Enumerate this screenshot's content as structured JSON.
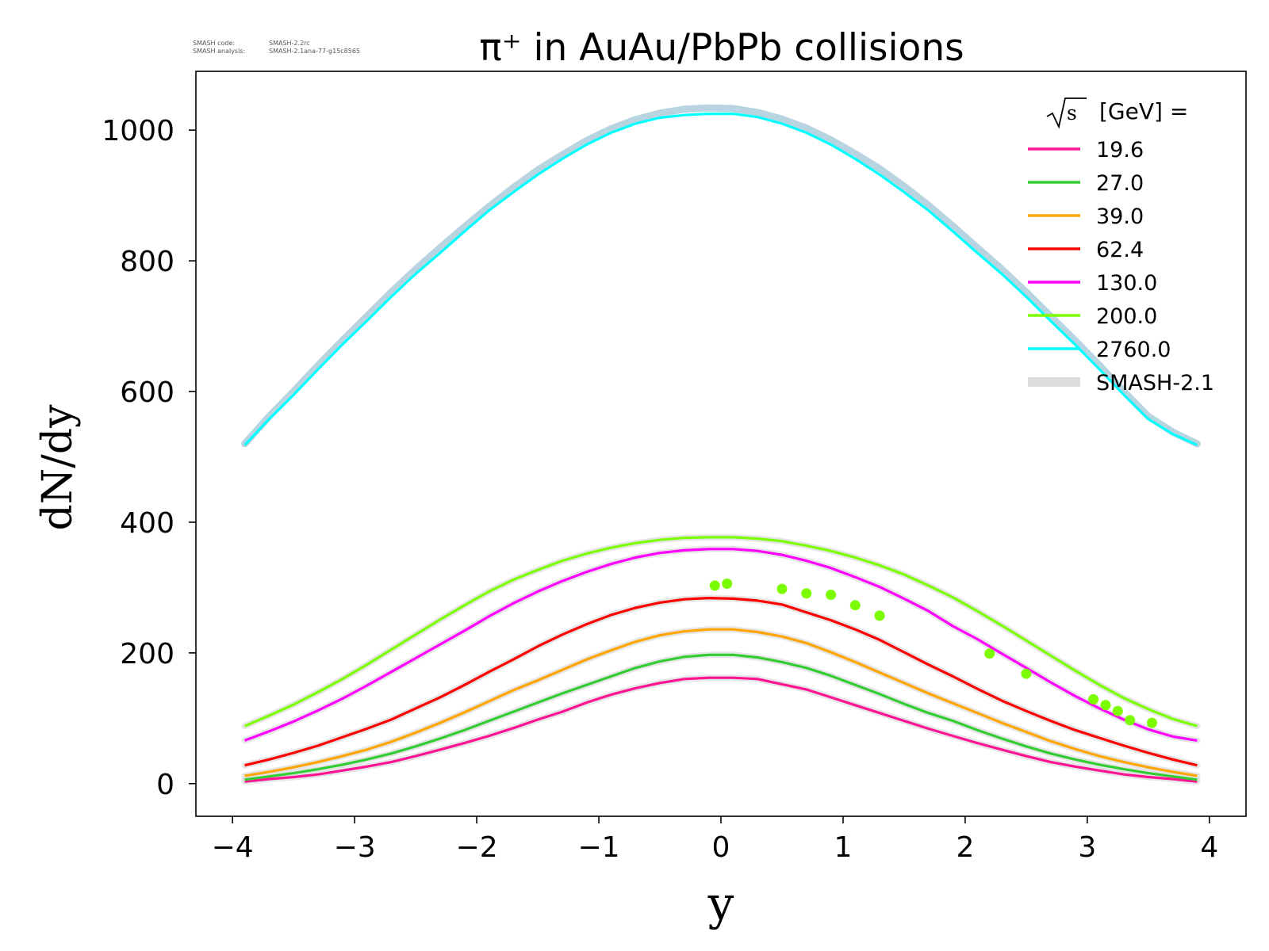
{
  "meta": {
    "code_label": "SMASH code:",
    "code_value": "SMASH-2.2rc",
    "analysis_label": "SMASH analysis:",
    "analysis_value": "SMASH-2.1ana-77-g15c8565"
  },
  "chart_data": {
    "type": "line",
    "title": "π⁺ in AuAu/PbPb collisions",
    "xlabel": "y",
    "ylabel": "dN/dy",
    "xlim": [
      -4.3,
      4.3
    ],
    "ylim": [
      -50,
      1090
    ],
    "xticks": [
      -4,
      -3,
      -2,
      -1,
      0,
      1,
      2,
      3,
      4
    ],
    "xtick_labels": [
      "−4",
      "−3",
      "−2",
      "−1",
      "0",
      "1",
      "2",
      "3",
      "4"
    ],
    "yticks": [
      0,
      200,
      400,
      600,
      800,
      1000
    ],
    "ytick_labels": [
      "0",
      "200",
      "400",
      "600",
      "800",
      "1000"
    ],
    "grid": false,
    "legend": {
      "placement": "top-right",
      "title_root": "s",
      "title_rest": "[GeV] =",
      "band_label": "SMASH-2.1",
      "band_color": "#dddddd"
    },
    "x": [
      -3.9,
      -3.7,
      -3.5,
      -3.3,
      -3.1,
      -2.9,
      -2.7,
      -2.5,
      -2.3,
      -2.1,
      -1.9,
      -1.7,
      -1.5,
      -1.3,
      -1.1,
      -0.9,
      -0.7,
      -0.5,
      -0.3,
      -0.1,
      0.1,
      0.3,
      0.5,
      0.7,
      0.9,
      1.1,
      1.3,
      1.5,
      1.7,
      1.9,
      2.1,
      2.3,
      2.5,
      2.7,
      2.9,
      3.1,
      3.3,
      3.5,
      3.7,
      3.9
    ],
    "series": [
      {
        "name": "19.6",
        "color": "#ff1493",
        "values": [
          3,
          7,
          10,
          14,
          20,
          26,
          33,
          42,
          52,
          62,
          73,
          85,
          98,
          110,
          124,
          136,
          146,
          154,
          160,
          162,
          162,
          160,
          152,
          144,
          132,
          120,
          108,
          96,
          84,
          73,
          62,
          52,
          42,
          33,
          26,
          20,
          14,
          10,
          7,
          3
        ]
      },
      {
        "name": "27.0",
        "color": "#32cd32",
        "values": [
          6,
          11,
          16,
          22,
          29,
          37,
          46,
          57,
          69,
          82,
          96,
          110,
          124,
          138,
          151,
          164,
          177,
          187,
          194,
          197,
          197,
          193,
          186,
          177,
          165,
          151,
          137,
          122,
          108,
          96,
          82,
          69,
          57,
          46,
          37,
          29,
          22,
          16,
          11,
          6
        ]
      },
      {
        "name": "39.0",
        "color": "#ffa500",
        "values": [
          12,
          18,
          25,
          33,
          42,
          52,
          64,
          78,
          93,
          109,
          126,
          143,
          158,
          174,
          190,
          204,
          217,
          227,
          233,
          236,
          236,
          232,
          225,
          215,
          201,
          186,
          170,
          154,
          138,
          123,
          108,
          93,
          79,
          65,
          53,
          42,
          33,
          25,
          18,
          12
        ]
      },
      {
        "name": "62.4",
        "color": "#ff0000",
        "values": [
          28,
          37,
          47,
          58,
          71,
          84,
          98,
          115,
          132,
          151,
          171,
          190,
          210,
          228,
          244,
          258,
          269,
          277,
          282,
          284,
          283,
          280,
          274,
          262,
          250,
          236,
          220,
          201,
          182,
          164,
          145,
          127,
          111,
          96,
          82,
          70,
          58,
          47,
          37,
          28
        ]
      },
      {
        "name": "130.0",
        "color": "#ff00ff",
        "values": [
          66,
          80,
          95,
          112,
          130,
          150,
          171,
          192,
          213,
          234,
          256,
          276,
          294,
          310,
          324,
          336,
          346,
          353,
          357,
          359,
          359,
          356,
          350,
          341,
          330,
          316,
          301,
          283,
          264,
          241,
          221,
          199,
          177,
          155,
          134,
          115,
          98,
          83,
          72,
          66
        ]
      },
      {
        "name": "200.0",
        "color": "#7cfc00",
        "values": [
          88,
          104,
          121,
          140,
          160,
          182,
          205,
          228,
          251,
          273,
          294,
          312,
          327,
          341,
          352,
          361,
          368,
          373,
          376,
          377,
          377,
          375,
          371,
          364,
          356,
          346,
          334,
          320,
          303,
          285,
          264,
          242,
          219,
          196,
          173,
          151,
          131,
          114,
          99,
          88
        ]
      },
      {
        "name": "2760.0",
        "color": "#00ffff",
        "values": [
          518,
          558,
          595,
          634,
          672,
          708,
          745,
          780,
          812,
          845,
          877,
          905,
          932,
          956,
          978,
          996,
          1010,
          1019,
          1023,
          1025,
          1025,
          1020,
          1010,
          996,
          978,
          956,
          932,
          905,
          877,
          845,
          812,
          780,
          745,
          708,
          672,
          634,
          595,
          558,
          535,
          518
        ]
      }
    ],
    "band": {
      "color": "#dddddd",
      "cyan_band_color": "#b7d4e0",
      "values_2760": [
        520,
        562,
        600,
        640,
        678,
        715,
        752,
        787,
        820,
        852,
        883,
        912,
        939,
        962,
        984,
        1002,
        1016,
        1026,
        1032,
        1034,
        1033,
        1027,
        1017,
        1003,
        985,
        964,
        941,
        914,
        885,
        853,
        820,
        787,
        752,
        715,
        678,
        640,
        600,
        562,
        538,
        520
      ]
    },
    "points": {
      "color": "#7cfc00",
      "x": [
        -0.05,
        0.05,
        0.5,
        0.7,
        0.9,
        1.1,
        1.3,
        2.2,
        2.5,
        3.05,
        3.15,
        3.25,
        3.35,
        3.53
      ],
      "y": [
        303,
        306,
        298,
        291,
        289,
        273,
        257,
        199,
        168,
        129,
        120,
        111,
        97,
        93
      ]
    }
  }
}
